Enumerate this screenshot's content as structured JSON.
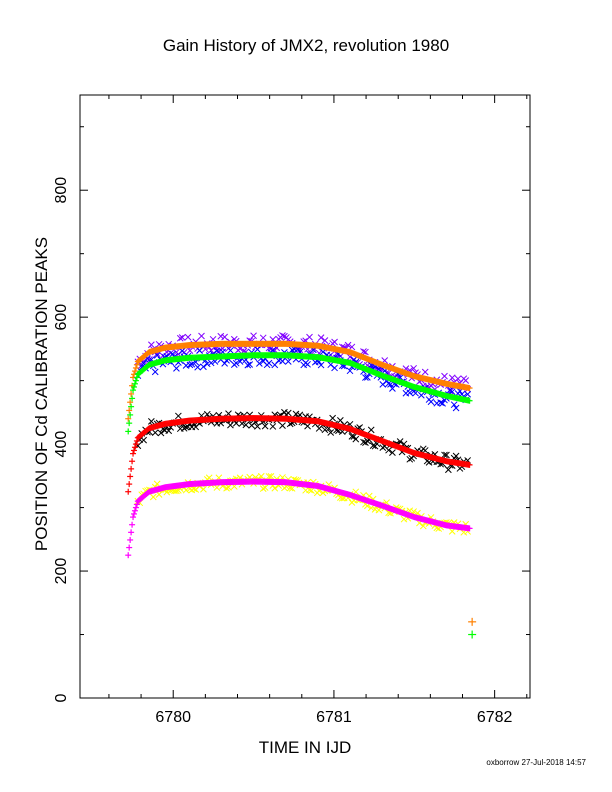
{
  "chart_data": {
    "type": "scatter",
    "title": "Gain History of JMX2, revolution 1980",
    "xlabel": "TIME IN IJD",
    "ylabel": "POSITION OF Cd CALIBRATION PEAKS",
    "xlim": [
      6779.42,
      6782.22
    ],
    "ylim": [
      0,
      950
    ],
    "xticks": [
      6780,
      6781,
      6782
    ],
    "yticks": [
      0,
      200,
      400,
      600,
      800
    ],
    "grid": false,
    "legend": "none",
    "series": [
      {
        "color": "#ff8000",
        "marker": "+",
        "role": "fit",
        "x": [
          6779.72,
          6779.75,
          6779.78,
          6779.85,
          6779.95,
          6780.1,
          6780.3,
          6780.5,
          6780.7,
          6780.9,
          6781.1,
          6781.3,
          6781.5,
          6781.7,
          6781.85
        ],
        "y": [
          440,
          505,
          530,
          545,
          552,
          556,
          558,
          558,
          558,
          555,
          545,
          525,
          507,
          495,
          488
        ]
      },
      {
        "color": "#00ff00",
        "marker": "+",
        "role": "fit",
        "x": [
          6779.72,
          6779.75,
          6779.78,
          6779.85,
          6779.95,
          6780.1,
          6780.3,
          6780.5,
          6780.7,
          6780.9,
          6781.1,
          6781.3,
          6781.5,
          6781.7,
          6781.85
        ],
        "y": [
          420,
          485,
          510,
          525,
          532,
          536,
          538,
          540,
          540,
          537,
          528,
          508,
          490,
          476,
          468
        ]
      },
      {
        "color": "#ff0000",
        "marker": "+",
        "role": "fit",
        "x": [
          6779.72,
          6779.75,
          6779.78,
          6779.85,
          6779.95,
          6780.1,
          6780.3,
          6780.5,
          6780.7,
          6780.9,
          6781.1,
          6781.3,
          6781.5,
          6781.7,
          6781.85
        ],
        "y": [
          325,
          385,
          410,
          425,
          432,
          437,
          440,
          441,
          440,
          436,
          424,
          405,
          386,
          373,
          367
        ]
      },
      {
        "color": "#ff00ff",
        "marker": "+",
        "role": "fit",
        "x": [
          6779.72,
          6779.75,
          6779.78,
          6779.85,
          6779.95,
          6780.1,
          6780.3,
          6780.5,
          6780.7,
          6780.9,
          6781.1,
          6781.3,
          6781.5,
          6781.7,
          6781.85
        ],
        "y": [
          225,
          285,
          310,
          325,
          332,
          337,
          340,
          341,
          340,
          334,
          320,
          303,
          285,
          272,
          267
        ]
      },
      {
        "color": "#8000ff",
        "marker": "x",
        "role": "measured",
        "center": 558,
        "scatter": 14
      },
      {
        "color": "#0000ff",
        "marker": "x",
        "role": "measured",
        "center": 538,
        "scatter": 14
      },
      {
        "color": "#000000",
        "marker": "x",
        "role": "measured",
        "center": 440,
        "scatter": 12
      },
      {
        "color": "#ffff00",
        "marker": "x",
        "role": "measured",
        "center": 340,
        "scatter": 10
      },
      {
        "color": "#ff8000",
        "marker": "+",
        "role": "isolated",
        "x": [
          6781.86
        ],
        "y": [
          120
        ]
      },
      {
        "color": "#00ff00",
        "marker": "+",
        "role": "isolated",
        "x": [
          6781.86
        ],
        "y": [
          100
        ]
      }
    ]
  },
  "credit": "oxborrow 27-Jul-2018 14:57"
}
